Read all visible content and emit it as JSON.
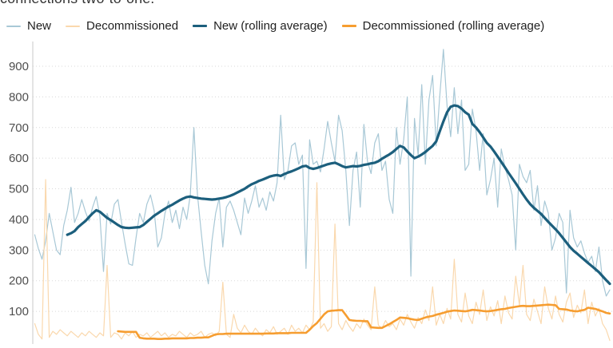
{
  "header": {
    "clipped_text": "connections two-to-one."
  },
  "legend": [
    {
      "label": "New",
      "color": "#a8c8d6",
      "thick": false
    },
    {
      "label": "Decommissioned",
      "color": "#fad8ad",
      "thick": false
    },
    {
      "label": "New (rolling average)",
      "color": "#1c5f7d",
      "thick": true
    },
    {
      "label": "Decommissioned (rolling average)",
      "color": "#f69d30",
      "thick": true
    }
  ],
  "chart_data": {
    "type": "line",
    "title": "connections two-to-one. (heading cropped at top of screenshot)",
    "xlabel": "",
    "ylabel": "",
    "x_axis_labels_visible": false,
    "y_ticks": [
      100,
      200,
      300,
      400,
      500,
      600,
      700,
      800,
      900
    ],
    "ylim": [
      0,
      960
    ],
    "grid": "horizontal-dotted",
    "legend_position": "top",
    "colors": {
      "new": "#a8c8d6",
      "decommissioned": "#fad8ad",
      "new_rolling": "#1c5f7d",
      "decommissioned_rolling": "#f69d30",
      "gridline": "#d8d8d8",
      "axis_line": "#c8c8c8",
      "tick_text": "#4f4f4f"
    },
    "series": [
      {
        "name": "New",
        "color": "#a8c8d6",
        "stroke_width": 1.2,
        "start_index": 0,
        "values": [
          350,
          305,
          270,
          330,
          420,
          360,
          300,
          285,
          380,
          430,
          505,
          390,
          420,
          465,
          425,
          395,
          440,
          475,
          410,
          230,
          420,
          385,
          450,
          465,
          390,
          320,
          255,
          250,
          340,
          420,
          390,
          450,
          480,
          430,
          310,
          340,
          420,
          460,
          390,
          430,
          370,
          440,
          400,
          480,
          700,
          480,
          360,
          250,
          190,
          330,
          420,
          470,
          310,
          440,
          460,
          430,
          390,
          350,
          470,
          420,
          460,
          510,
          440,
          470,
          430,
          490,
          460,
          520,
          740,
          530,
          560,
          640,
          650,
          580,
          610,
          240,
          660,
          580,
          590,
          555,
          630,
          720,
          650,
          590,
          740,
          690,
          560,
          380,
          560,
          620,
          440,
          710,
          590,
          550,
          650,
          680,
          560,
          590,
          465,
          420,
          700,
          580,
          660,
          800,
          215,
          730,
          610,
          840,
          580,
          790,
          870,
          640,
          805,
          955,
          770,
          670,
          830,
          680,
          790,
          560,
          580,
          760,
          690,
          560,
          680,
          480,
          530,
          600,
          440,
          630,
          570,
          530,
          480,
          300,
          580,
          540,
          520,
          560,
          430,
          510,
          380,
          460,
          420,
          300,
          340,
          420,
          390,
          160,
          430,
          340,
          310,
          330,
          290,
          260,
          280,
          230,
          310,
          200,
          150,
          170
        ]
      },
      {
        "name": "Decommissioned",
        "color": "#fad8ad",
        "stroke_width": 1.2,
        "start_index": 0,
        "values": [
          60,
          25,
          10,
          530,
          15,
          35,
          25,
          40,
          30,
          20,
          35,
          25,
          15,
          30,
          20,
          35,
          25,
          15,
          30,
          20,
          250,
          15,
          30,
          25,
          10,
          30,
          20,
          35,
          15,
          25,
          20,
          30,
          15,
          25,
          35,
          20,
          30,
          15,
          25,
          20,
          35,
          25,
          15,
          30,
          20,
          25,
          35,
          15,
          25,
          30,
          20,
          35,
          195,
          25,
          15,
          90,
          45,
          30,
          55,
          35,
          25,
          45,
          30,
          20,
          40,
          30,
          50,
          25,
          35,
          45,
          25,
          55,
          35,
          45,
          30,
          55,
          40,
          65,
          520,
          45,
          60,
          35,
          50,
          385,
          60,
          40,
          70,
          50,
          35,
          60,
          45,
          75,
          55,
          40,
          180,
          55,
          45,
          70,
          50,
          60,
          40,
          75,
          55,
          90,
          65,
          45,
          80,
          60,
          105,
          70,
          180,
          55,
          90,
          60,
          110,
          75,
          270,
          90,
          65,
          160,
          85,
          60,
          130,
          90,
          170,
          70,
          115,
          85,
          135,
          60,
          150,
          95,
          75,
          215,
          120,
          250,
          90,
          70,
          140,
          100,
          60,
          180,
          110,
          75,
          150,
          90,
          65,
          130,
          160,
          80,
          120,
          95,
          170,
          60,
          130,
          85,
          110,
          60,
          40,
          5
        ]
      },
      {
        "name": "New (rolling average)",
        "color": "#1c5f7d",
        "stroke_width": 3.2,
        "start_index": 9,
        "values": [
          350,
          355,
          362,
          375,
          385,
          395,
          408,
          420,
          430,
          425,
          415,
          405,
          398,
          390,
          382,
          375,
          373,
          372,
          373,
          374,
          375,
          382,
          392,
          402,
          412,
          420,
          428,
          435,
          442,
          448,
          455,
          462,
          468,
          473,
          475,
          472,
          470,
          468,
          467,
          466,
          465,
          466,
          468,
          470,
          473,
          477,
          482,
          488,
          494,
          500,
          508,
          515,
          520,
          526,
          530,
          535,
          540,
          543,
          545,
          542,
          548,
          553,
          557,
          562,
          567,
          573,
          575,
          568,
          565,
          568,
          572,
          576,
          580,
          583,
          585,
          580,
          574,
          570,
          572,
          574,
          573,
          575,
          578,
          580,
          583,
          585,
          590,
          598,
          605,
          612,
          620,
          630,
          640,
          635,
          622,
          610,
          600,
          605,
          612,
          620,
          630,
          640,
          655,
          688,
          720,
          750,
          768,
          772,
          770,
          762,
          750,
          742,
          712,
          700,
          685,
          668,
          650,
          638,
          622,
          605,
          588,
          570,
          552,
          535,
          518,
          500,
          482,
          465,
          450,
          438,
          428,
          418,
          405,
          392,
          380,
          368,
          355,
          340,
          325,
          310,
          298,
          288,
          278,
          268,
          258,
          248,
          238,
          228,
          215,
          202,
          190
        ]
      },
      {
        "name": "Decommissioned (rolling average)",
        "color": "#f69d30",
        "stroke_width": 2.6,
        "start_index": 23,
        "values": [
          35,
          34,
          33,
          33,
          33,
          33,
          14,
          12,
          11,
          11,
          11,
          10,
          10,
          11,
          11,
          12,
          12,
          12,
          12,
          12,
          13,
          13,
          14,
          14,
          15,
          15,
          20,
          25,
          26,
          26,
          27,
          27,
          27,
          27,
          27,
          27,
          27,
          27,
          27,
          27,
          27,
          28,
          28,
          28,
          29,
          29,
          29,
          29,
          30,
          30,
          30,
          30,
          30,
          40,
          52,
          62,
          76,
          90,
          100,
          102,
          103,
          104,
          104,
          88,
          72,
          70,
          69,
          69,
          68,
          68,
          48,
          47,
          46,
          46,
          52,
          58,
          65,
          72,
          80,
          79,
          78,
          75,
          73,
          72,
          76,
          80,
          83,
          85,
          89,
          92,
          95,
          99,
          101,
          103,
          102,
          101,
          100,
          102,
          105,
          104,
          103,
          101,
          100,
          101,
          103,
          105,
          107,
          108,
          111,
          113,
          115,
          117,
          118,
          117,
          117,
          118,
          119,
          120,
          121,
          122,
          121,
          120,
          108,
          107,
          106,
          103,
          101,
          100,
          103,
          105,
          112,
          110,
          108,
          104,
          100,
          95,
          93
        ]
      }
    ]
  }
}
